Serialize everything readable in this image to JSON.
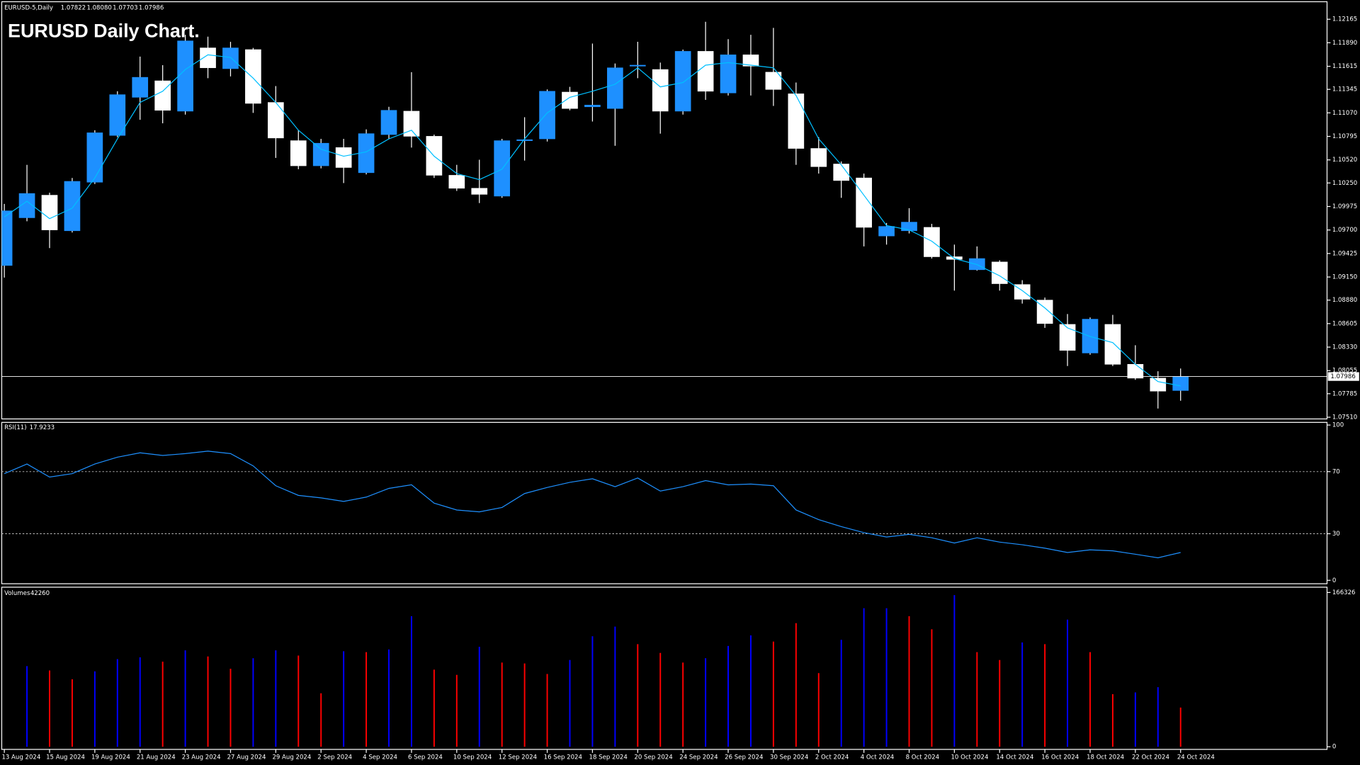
{
  "window": {
    "symbol": "EURUSD-5,Daily"
  },
  "chart_data": [
    {
      "type": "candlestick",
      "title": "EURUSD Daily Chart.",
      "header_values": [
        "1.07822",
        "1.08080",
        "1.07703",
        "1.07986"
      ],
      "categories": [
        "13 Aug 2024",
        null,
        "15 Aug 2024",
        null,
        "19 Aug 2024",
        null,
        "21 Aug 2024",
        null,
        "23 Aug 2024",
        null,
        "27 Aug 2024",
        null,
        "29 Aug 2024",
        null,
        "2 Sep 2024",
        null,
        "4 Sep 2024",
        null,
        "6 Sep 2024",
        null,
        "10 Sep 2024",
        null,
        "12 Sep 2024",
        null,
        "16 Sep 2024",
        null,
        "18 Sep 2024",
        null,
        "20 Sep 2024",
        null,
        "24 Sep 2024",
        null,
        "26 Sep 2024",
        null,
        "30 Sep 2024",
        null,
        "2 Oct 2024",
        null,
        "4 Oct 2024",
        null,
        "8 Oct 2024",
        null,
        "10 Oct 2024",
        null,
        "14 Oct 2024",
        null,
        "16 Oct 2024",
        null,
        "18 Oct 2024",
        null,
        "22 Oct 2024",
        null,
        "24 Oct 2024"
      ],
      "open": [
        1.09285,
        1.09843,
        1.10107,
        1.09691,
        1.10259,
        1.10806,
        1.11252,
        1.11445,
        1.1109,
        1.1183,
        1.11587,
        1.1181,
        1.11192,
        1.10745,
        1.10451,
        1.10664,
        1.1037,
        1.10816,
        1.1109,
        1.10796,
        1.1034,
        1.10188,
        1.10096,
        1.10745,
        1.10766,
        1.11313,
        1.11141,
        1.11121,
        1.11617,
        1.11577,
        1.1109,
        1.1179,
        1.11303,
        1.11749,
        1.11546,
        1.11293,
        1.10654,
        1.10472,
        1.10309,
        1.0963,
        1.09691,
        1.09731,
        1.09387,
        1.09235,
        1.09326,
        1.09062,
        1.0888,
        1.08596,
        1.08261,
        1.08596,
        1.08129,
        1.07967,
        1.07822
      ],
      "high": [
        1.10005,
        1.10462,
        1.10137,
        1.10309,
        1.10867,
        1.11323,
        1.11729,
        1.11628,
        1.11983,
        1.11962,
        1.11901,
        1.1183,
        1.11384,
        1.10867,
        1.10766,
        1.10766,
        1.10877,
        1.11141,
        1.11546,
        1.10816,
        1.10462,
        1.10522,
        1.10766,
        1.11019,
        1.11344,
        1.11374,
        1.11881,
        1.11648,
        1.11901,
        1.11658,
        1.1181,
        1.12135,
        1.11932,
        1.11983,
        1.12064,
        1.11425,
        1.10786,
        1.10502,
        1.1036,
        1.09782,
        1.09955,
        1.09772,
        1.09529,
        1.09508,
        1.09346,
        1.09113,
        1.0891,
        1.08717,
        1.08677,
        1.08707,
        1.08352,
        1.08048,
        1.0808
      ],
      "low": [
        1.09143,
        1.09802,
        1.09488,
        1.09671,
        1.10238,
        1.10786,
        1.10989,
        1.10948,
        1.1105,
        1.11476,
        1.11496,
        1.1107,
        1.10543,
        1.10411,
        1.10421,
        1.10249,
        1.1035,
        1.10766,
        1.10664,
        1.10309,
        1.10157,
        1.10015,
        1.10076,
        1.10512,
        1.10735,
        1.111,
        1.10969,
        1.10685,
        1.11476,
        1.10827,
        1.1105,
        1.11222,
        1.11273,
        1.11273,
        1.11151,
        1.10462,
        1.1036,
        1.10076,
        1.09508,
        1.09529,
        1.0966,
        1.09366,
        1.08991,
        1.09224,
        1.08991,
        1.08839,
        1.08555,
        1.08109,
        1.08241,
        1.08109,
        1.07947,
        1.07612,
        1.07703
      ],
      "close": [
        1.09924,
        1.10127,
        1.09701,
        1.10269,
        1.10837,
        1.11283,
        1.11486,
        1.111,
        1.11912,
        1.11597,
        1.1183,
        1.11181,
        1.10776,
        1.10451,
        1.10715,
        1.10431,
        1.10827,
        1.111,
        1.10796,
        1.1034,
        1.10188,
        1.10117,
        1.10745,
        1.10756,
        1.11323,
        1.11121,
        1.11161,
        1.11597,
        1.11628,
        1.1109,
        1.1179,
        1.11323,
        1.11749,
        1.11617,
        1.11344,
        1.10654,
        1.10441,
        1.10279,
        1.09731,
        1.09742,
        1.09792,
        1.09387,
        1.09356,
        1.09366,
        1.09072,
        1.0889,
        1.08606,
        1.08292,
        1.08657,
        1.08129,
        1.07967,
        1.07815,
        1.07986
      ],
      "up_color": "#1e90ff",
      "down_color": "#ffffff",
      "wick_color": "#ffffff",
      "overlay": {
        "color": "#00bfff",
        "values": [
          1.09853,
          1.10036,
          1.09833,
          1.09955,
          1.10309,
          1.10766,
          1.11192,
          1.11323,
          1.11577,
          1.11749,
          1.11719,
          1.11476,
          1.11192,
          1.10867,
          1.10644,
          1.10563,
          1.10614,
          1.10766,
          1.10867,
          1.10563,
          1.1036,
          1.10289,
          1.10411,
          1.10766,
          1.1107,
          1.11252,
          1.11323,
          1.11405,
          1.11597,
          1.11374,
          1.11425,
          1.11628,
          1.11658,
          1.11628,
          1.11597,
          1.11273,
          1.10766,
          1.10462,
          1.10107,
          1.09752,
          1.09701,
          1.09569,
          1.09366,
          1.09295,
          1.09164,
          1.08991,
          1.08788,
          1.08555,
          1.08454,
          1.08383,
          1.08129,
          1.07927,
          1.07876
        ]
      },
      "ylim": [
        1.0749,
        1.1237
      ],
      "yticks": [
        1.12165,
        {
          "value": 1.1189,
          "label": "1.11890"
        },
        1.11615,
        1.11345,
        {
          "value": 1.1107,
          "label": "1.11070"
        },
        1.10795,
        {
          "value": 1.1052,
          "label": "1.10520"
        },
        {
          "value": 1.1025,
          "label": "1.10250"
        },
        1.09975,
        {
          "value": 1.097,
          "label": "1.09700"
        },
        1.09425,
        {
          "value": 1.0915,
          "label": "1.09150"
        },
        {
          "value": 1.0888,
          "label": "1.08880"
        },
        1.08605,
        {
          "value": 1.0833,
          "label": "1.08330"
        },
        1.08055,
        1.07785,
        {
          "value": 1.0751,
          "label": "1.07510"
        }
      ]
    },
    {
      "type": "line",
      "name": "RSI(11)",
      "color": "#1e90ff",
      "values": [
        68.7,
        74.9,
        66.5,
        68.7,
        74.9,
        79.3,
        82.1,
        80.4,
        81.6,
        83.2,
        81.6,
        73.7,
        60.9,
        54.7,
        53.1,
        50.8,
        53.6,
        59.2,
        61.5,
        49.7,
        45.3,
        44.1,
        46.9,
        55.9,
        59.8,
        63.1,
        65.4,
        60.3,
        65.9,
        57.5,
        60.3,
        64.2,
        61.5,
        62.0,
        60.9,
        45.3,
        39.1,
        34.6,
        30.7,
        27.9,
        29.6,
        27.4,
        24.0,
        27.4,
        24.6,
        22.9,
        20.7,
        17.9,
        19.6,
        19.0,
        16.8,
        14.5,
        17.9233
      ],
      "ylim": [
        -2.2,
        101.7
      ],
      "yticks": [
        0,
        30,
        70,
        100
      ],
      "levels": [
        30,
        70
      ]
    },
    {
      "type": "bar",
      "name": "Volumes",
      "values": [
        null,
        86943,
        82218,
        72767,
        81273,
        94503,
        96393,
        91668,
        103953,
        97338,
        84108,
        95448,
        103953,
        98283,
        57647,
        103008,
        102063,
        104898,
        140809,
        83163,
        77492,
        107733,
        90723,
        89778,
        78437,
        93558,
        119074,
        129469,
        110569,
        101118,
        90723,
        95448,
        108678,
        120019,
        113404,
        133249,
        79383,
        115294,
        149315,
        149315,
        140809,
        126634,
        163490,
        102063,
        93558,
        112459,
        110569,
        137029,
        102063,
        56702,
        58592,
        64262,
        42260
      ],
      "colors": [
        null,
        "#0000ff",
        "#ff0000",
        "#ff0000",
        "#0000ff",
        "#0000ff",
        "#0000ff",
        "#ff0000",
        "#0000ff",
        "#ff0000",
        "#ff0000",
        "#0000ff",
        "#0000ff",
        "#ff0000",
        "#ff0000",
        "#0000ff",
        "#ff0000",
        "#0000ff",
        "#0000ff",
        "#ff0000",
        "#ff0000",
        "#0000ff",
        "#ff0000",
        "#ff0000",
        "#ff0000",
        "#0000ff",
        "#0000ff",
        "#0000ff",
        "#ff0000",
        "#ff0000",
        "#ff0000",
        "#0000ff",
        "#0000ff",
        "#0000ff",
        "#ff0000",
        "#ff0000",
        "#ff0000",
        "#0000ff",
        "#0000ff",
        "#0000ff",
        "#ff0000",
        "#ff0000",
        "#0000ff",
        "#ff0000",
        "#ff0000",
        "#0000ff",
        "#ff0000",
        "#0000ff",
        "#ff0000",
        "#ff0000",
        "#0000ff",
        "#0000ff",
        "#ff0000"
      ],
      "ylim": [
        -2835,
        171996
      ],
      "yticks": [
        0,
        166326
      ]
    }
  ]
}
